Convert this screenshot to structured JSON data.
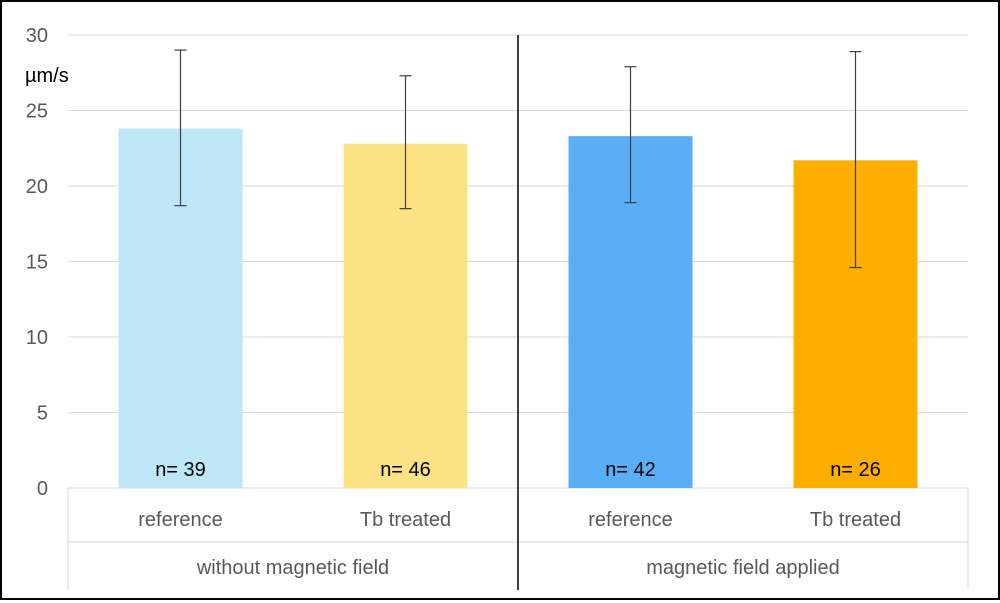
{
  "chart_data": {
    "type": "bar",
    "title": "",
    "xlabel": "",
    "ylabel": "µm/s",
    "ylim": [
      0,
      30
    ],
    "yticks": [
      0,
      5,
      10,
      15,
      20,
      25,
      30
    ],
    "grid": true,
    "legend": "none",
    "groups": [
      {
        "label": "without magnetic field",
        "bars": [
          {
            "category": "reference",
            "value": 23.8,
            "error_low": 18.7,
            "error_high": 29.0,
            "n_label": "n= 39",
            "color": "#bee6f6"
          },
          {
            "category": "Tb treated",
            "value": 22.8,
            "error_low": 18.5,
            "error_high": 27.3,
            "n_label": "n= 46",
            "color": "#fbe283"
          }
        ]
      },
      {
        "label": "magnetic field applied",
        "bars": [
          {
            "category": "reference",
            "value": 23.3,
            "error_low": 18.9,
            "error_high": 27.9,
            "n_label": "n= 42",
            "color": "#5aaef5"
          },
          {
            "category": "Tb treated",
            "value": 21.7,
            "error_low": 14.6,
            "error_high": 28.9,
            "n_label": "n= 26",
            "color": "#fdae00"
          }
        ]
      }
    ]
  }
}
